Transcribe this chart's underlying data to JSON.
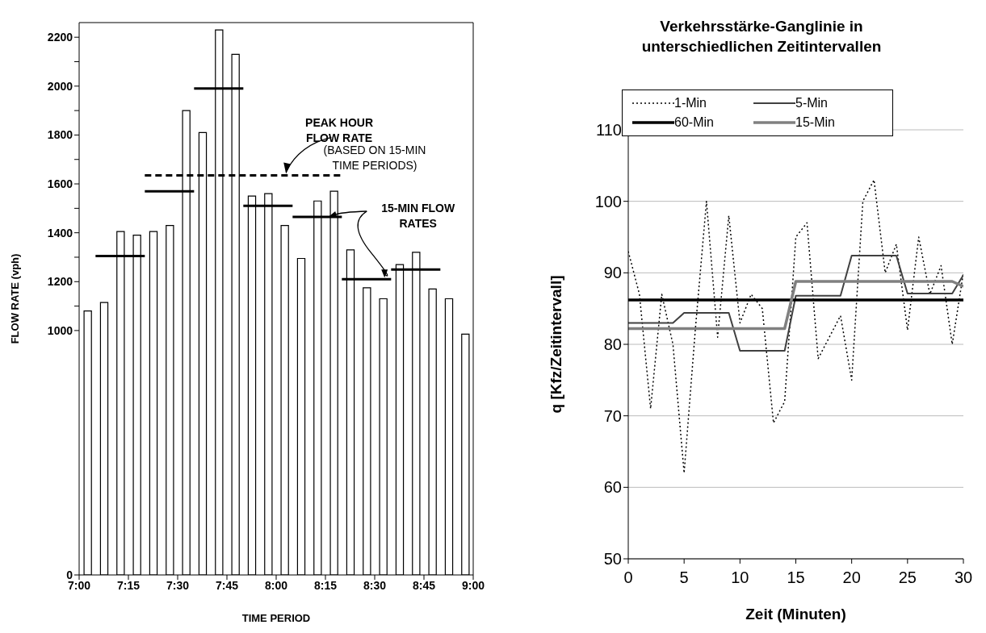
{
  "chart_data": [
    {
      "type": "histogram",
      "xlabel": "TIME PERIOD",
      "ylabel": "FLOW RATE (vph)",
      "color": "#ffffff",
      "bins": [
        7,
        7.0833,
        7.1667,
        7.25,
        7.3333,
        7.4167,
        7.5,
        7.5833,
        7.6667,
        7.75,
        7.8333,
        7.9167,
        8,
        8.0833,
        8.1667,
        8.25,
        8.3333,
        8.4167,
        8.5,
        8.5833,
        8.6667,
        8.75,
        8.8333,
        8.9167,
        9
      ],
      "values": [
        1080,
        1115,
        1405,
        1390,
        1405,
        1430,
        1900,
        1810,
        2230,
        2130,
        1550,
        1560,
        1430,
        1295,
        1530,
        1570,
        1330,
        1175,
        1130,
        1270,
        1320,
        1170,
        1130,
        985
      ],
      "series": [
        {
          "type": "line",
          "color": "#000000",
          "line_style": "solid",
          "x": [
            7.0833,
            7.3333
          ],
          "values": [
            1305,
            1305
          ]
        },
        {
          "type": "line",
          "color": "#000000",
          "line_style": "solid",
          "x": [
            7.3333,
            7.5833
          ],
          "values": [
            1570,
            1570
          ]
        },
        {
          "type": "line",
          "color": "#000000",
          "line_style": "solid",
          "x": [
            7.5833,
            7.8333
          ],
          "values": [
            1990,
            1990
          ]
        },
        {
          "type": "line",
          "color": "#000000",
          "line_style": "solid",
          "x": [
            7.8333,
            8.0833
          ],
          "values": [
            1510,
            1510
          ]
        },
        {
          "type": "line",
          "color": "#000000",
          "line_style": "solid",
          "x": [
            8.0833,
            8.3333
          ],
          "values": [
            1465,
            1465
          ]
        },
        {
          "type": "line",
          "color": "#000000",
          "line_style": "solid",
          "x": [
            8.3333,
            8.5833
          ],
          "values": [
            1210,
            1210
          ]
        },
        {
          "type": "line",
          "color": "#000000",
          "line_style": "solid",
          "x": [
            8.5833,
            8.8333
          ],
          "values": [
            1250,
            1250
          ]
        },
        {
          "type": "line",
          "color": "#000000",
          "line_style": "dashed",
          "x": [
            7.3333,
            8.3333
          ],
          "values": [
            1635,
            1635
          ]
        }
      ],
      "xlim": [
        7,
        9
      ],
      "xticks": [
        {
          "value": 7,
          "label": "7:00"
        },
        {
          "value": 7.25,
          "label": "7:15"
        },
        {
          "value": 7.5,
          "label": "7:30"
        },
        {
          "value": 7.75,
          "label": "7:45"
        },
        {
          "value": 8,
          "label": "8:00"
        },
        {
          "value": 8.25,
          "label": "8:15"
        },
        {
          "value": 8.5,
          "label": "8:30"
        },
        {
          "value": 8.75,
          "label": "8:45"
        },
        {
          "value": 9,
          "label": "9:00"
        }
      ],
      "ylim": [
        0,
        2260
      ],
      "yticks": [
        0,
        1000,
        {
          "value": 1100,
          "label": null
        },
        1200,
        {
          "value": 1300,
          "label": null
        },
        1400,
        {
          "value": 1500,
          "label": null
        },
        1600,
        {
          "value": 1700,
          "label": null
        },
        1800,
        {
          "value": 1900,
          "label": null
        },
        2000,
        {
          "value": 2100,
          "label": null
        },
        2200
      ],
      "grid": false,
      "annotations": [
        {
          "text": "PEAK HOUR FLOW RATE",
          "x": 8.05,
          "y": 1635
        },
        "(BASED ON 15-MIN TIME PERIODS)",
        {
          "text": "15-MIN FLOW RATES",
          "x": 8.55,
          "y": 1210
        }
      ]
    },
    {
      "type": "line",
      "title": "Verkehrsstärke-Ganglinie in unterschiedlichen Zeitintervallen",
      "xlabel": "Zeit   (Minuten)",
      "ylabel": "q [Kfz/Zeitintervall]",
      "x": [
        0,
        1,
        2,
        3,
        4,
        5,
        6,
        7,
        8,
        9,
        10,
        11,
        12,
        13,
        14,
        15,
        16,
        17,
        18,
        19,
        20,
        21,
        22,
        23,
        24,
        25,
        26,
        27,
        28,
        29,
        30
      ],
      "series": [
        {
          "name": "1-Min",
          "color": "#000000",
          "line_style": "dotted",
          "values": [
            93,
            87,
            71,
            87,
            80,
            62,
            82,
            100,
            81,
            98,
            83,
            87,
            85,
            69,
            72,
            95,
            97,
            78,
            81,
            84,
            75,
            100,
            103,
            90,
            94,
            82,
            95,
            87,
            91,
            80,
            90
          ]
        },
        {
          "name": "5-Min",
          "color": "#404040",
          "line_style": "solid",
          "values": [
            83.0,
            83.0,
            83.0,
            83.0,
            83.0,
            84.4,
            84.4,
            84.4,
            84.4,
            84.4,
            79.1,
            79.1,
            79.1,
            79.1,
            79.1,
            86.8,
            86.8,
            86.8,
            86.8,
            86.8,
            92.4,
            92.4,
            92.4,
            92.4,
            92.4,
            87.1,
            87.1,
            87.1,
            87.1,
            87.1,
            89.7
          ]
        },
        {
          "name": "60-Min",
          "color": "#000000",
          "line_style": "solid",
          "values": [
            86.2,
            86.2,
            86.2,
            86.2,
            86.2,
            86.2,
            86.2,
            86.2,
            86.2,
            86.2,
            86.2,
            86.2,
            86.2,
            86.2,
            86.2,
            86.2,
            86.2,
            86.2,
            86.2,
            86.2,
            86.2,
            86.2,
            86.2,
            86.2,
            86.2,
            86.2,
            86.2,
            86.2,
            86.2,
            86.2,
            86.2
          ]
        },
        {
          "name": "15-Min",
          "color": "#808080",
          "line_style": "solid",
          "values": [
            82.2,
            82.2,
            82.2,
            82.2,
            82.2,
            82.2,
            82.2,
            82.2,
            82.2,
            82.2,
            82.2,
            82.2,
            82.2,
            82.2,
            82.2,
            88.8,
            88.8,
            88.8,
            88.8,
            88.8,
            88.8,
            88.8,
            88.8,
            88.8,
            88.8,
            88.8,
            88.8,
            88.8,
            88.8,
            88.8,
            88.1
          ]
        }
      ],
      "xlim": [
        0,
        30
      ],
      "xticks": [
        0,
        5,
        10,
        15,
        20,
        25,
        30
      ],
      "ylim": [
        50,
        110
      ],
      "yticks": [
        50,
        60,
        70,
        80,
        90,
        100,
        110
      ],
      "grid": "y",
      "legend": "top",
      "marker": "none"
    }
  ]
}
